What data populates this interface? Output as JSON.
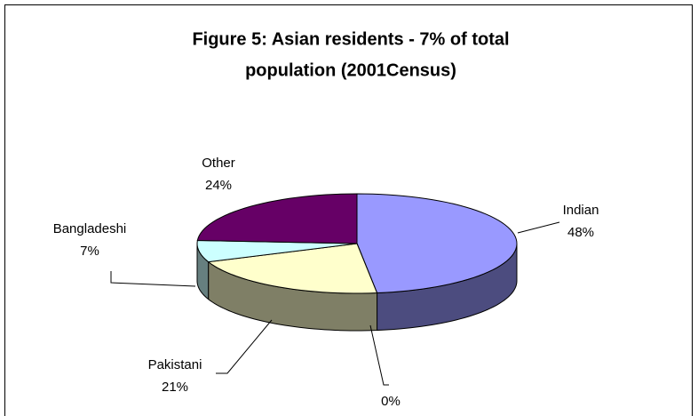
{
  "chart_data": {
    "type": "pie",
    "title": [
      "Figure 5: Asian residents - 7% of total",
      "population (2001Census)"
    ],
    "categories": [
      "Indian",
      null,
      "Pakistani",
      "Bangladeshi",
      "Other"
    ],
    "values": [
      48,
      0,
      21,
      7,
      24
    ],
    "value_labels": [
      "48%",
      "0%",
      "21%",
      "7%",
      "24%"
    ],
    "colors": [
      "#9999ff",
      "#993366",
      "#ffffcc",
      "#ccffff",
      "#660066"
    ]
  }
}
